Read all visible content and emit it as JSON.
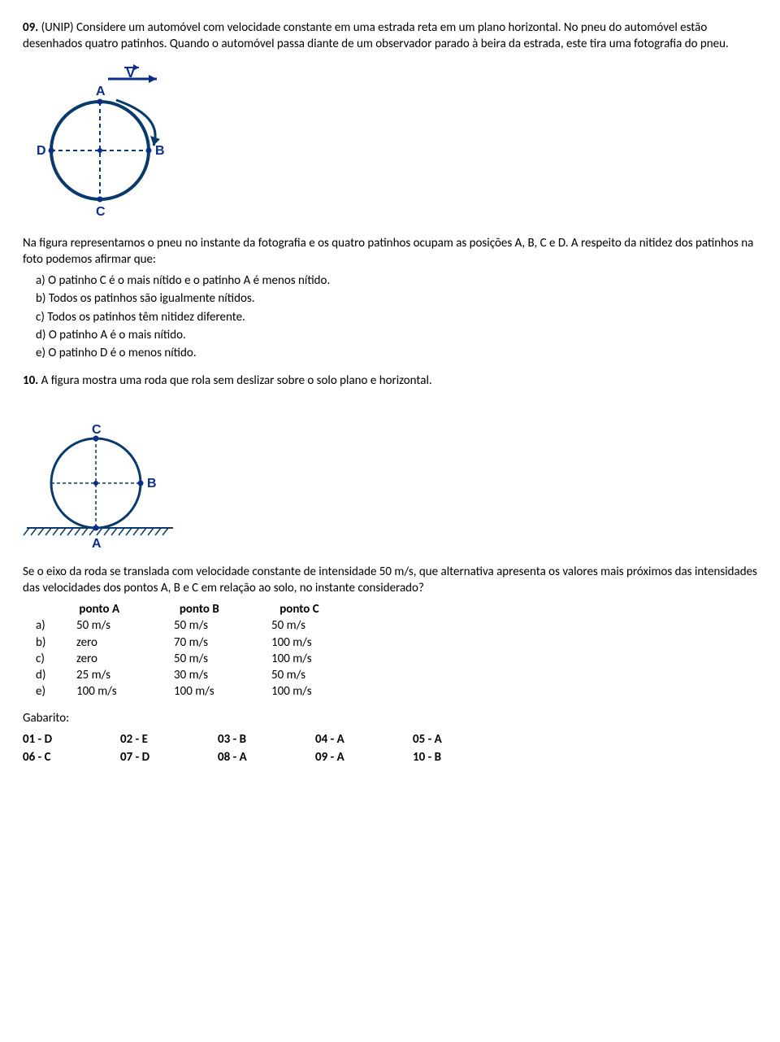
{
  "q09": {
    "header": "09.",
    "source": "(UNIP)",
    "text1": "Considere um automóvel com velocidade constante em uma estrada reta em um plano horizontal. No pneu do automóvel estão desenhados quatro patinhos. Quando o automóvel passa diante de um observador parado à beira da estrada, este tira uma fotografia do pneu.",
    "text2": "Na figura representamos o pneu no instante da fotografia e os quatro patinhos ocupam as posições A, B, C e D. A respeito da nitidez dos patinhos na foto podemos afirmar que:",
    "options": {
      "a": "a) O patinho C é o mais nítido e o patinho A é menos nítido.",
      "b": "b) Todos os patinhos são igualmente nítidos.",
      "c": "c) Todos os patinhos têm nitidez diferente.",
      "d": "d) O patinho A é o mais nítido.",
      "e": "e) O patinho D é o menos nítido."
    },
    "diagram": {
      "circle_color": "#083a6b",
      "label_color": "#0b2e8a",
      "point_color": "#0b2e8a",
      "labels": {
        "top": "A",
        "right": "B",
        "bottom": "C",
        "left": "D",
        "vec": "V"
      },
      "radius": 60,
      "stroke_width": 4
    }
  },
  "q10": {
    "header": "10.",
    "text1": "A figura mostra uma roda que rola sem deslizar sobre o solo plano e horizontal.",
    "text2": "Se o eixo da roda se translada com velocidade constante de intensidade 50 m/s, que alternativa apresenta os valores mais próximos das intensidades das velocidades dos pontos A, B e C em relação ao solo, no instante considerado?",
    "diagram": {
      "circle_color": "#083a6b",
      "label_color": "#0b2e8a",
      "point_color": "#0b2e8a",
      "labels": {
        "top": "C",
        "right": "B",
        "bottom": "A"
      },
      "radius": 55,
      "stroke_width": 3
    },
    "table": {
      "headers": {
        "a": "ponto A",
        "b": "ponto B",
        "c": "ponto C"
      },
      "rows": [
        {
          "lbl": "a)",
          "a": "50 m/s",
          "b": "50 m/s",
          "c": "50 m/s"
        },
        {
          "lbl": "b)",
          "a": "zero",
          "b": "70 m/s",
          "c": "100 m/s"
        },
        {
          "lbl": "c)",
          "a": "zero",
          "b": "50 m/s",
          "c": "100 m/s"
        },
        {
          "lbl": "d)",
          "a": "25 m/s",
          "b": "30 m/s",
          "c": "50 m/s"
        },
        {
          "lbl": "e)",
          "a": "100 m/s",
          "b": "100 m/s",
          "c": "100 m/s"
        }
      ]
    }
  },
  "gabarito": {
    "title": "Gabarito:",
    "answers": [
      [
        "01 - D",
        "02 - E",
        "03 - B",
        "04 - A",
        "05 - A"
      ],
      [
        "06 - C",
        "07 - D",
        "08 - A",
        "09 - A",
        "10 - B"
      ]
    ]
  }
}
